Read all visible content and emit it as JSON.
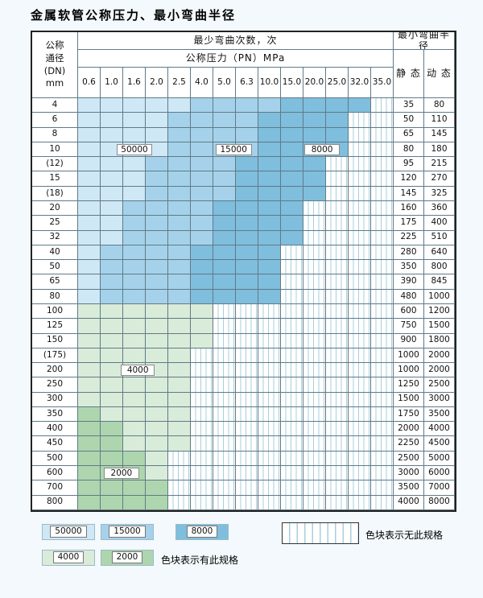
{
  "page": {
    "title": "金属软管公称压力、最小弯曲半径"
  },
  "table": {
    "header": {
      "dn_lines": [
        "公称",
        "通径",
        "(DN)",
        "mm"
      ],
      "bend_times": "最少弯曲次数，次",
      "pressure": "公称压力（PN）MPa",
      "radius": "最小弯曲半径",
      "static": "静 态",
      "dynamic": "动 态",
      "pressures": [
        "0.6",
        "1.0",
        "1.6",
        "2.0",
        "2.5",
        "4.0",
        "5.0",
        "6.3",
        "10.0",
        "15.0",
        "20.0",
        "25.0",
        "32.0",
        "35.0"
      ]
    },
    "colors": {
      "A": "#cfe8f6",
      "B": "#a5d2ea",
      "C": "#7fbedd",
      "D": "#d9ecd9",
      "E": "#aed6ae"
    },
    "rows": [
      {
        "dn": "4",
        "static": "35",
        "dynamic": "80",
        "cells": "AAAAABBBBCCCCS"
      },
      {
        "dn": "6",
        "static": "50",
        "dynamic": "110",
        "cells": "AAAABBBBCCCCSS"
      },
      {
        "dn": "8",
        "static": "65",
        "dynamic": "145",
        "cells": "AAAABBBBCCCCSS"
      },
      {
        "dn": "10",
        "static": "80",
        "dynamic": "180",
        "cells": "AAAABBBBCCCCSS"
      },
      {
        "dn": "(12)",
        "static": "95",
        "dynamic": "215",
        "cells": "AAABBBBCCCCSSS"
      },
      {
        "dn": "15",
        "static": "120",
        "dynamic": "270",
        "cells": "AAABBBBCCCCSSS"
      },
      {
        "dn": "(18)",
        "static": "145",
        "dynamic": "325",
        "cells": "AAABBBBCCCCSSS"
      },
      {
        "dn": "20",
        "static": "160",
        "dynamic": "360",
        "cells": "AABBBBCCCCSSSS"
      },
      {
        "dn": "25",
        "static": "175",
        "dynamic": "400",
        "cells": "AABBBBCCCCSSSS"
      },
      {
        "dn": "32",
        "static": "225",
        "dynamic": "510",
        "cells": "AABBBBCCCCSSSS"
      },
      {
        "dn": "40",
        "static": "280",
        "dynamic": "640",
        "cells": "ABBBBCCCCSSSSS"
      },
      {
        "dn": "50",
        "static": "350",
        "dynamic": "800",
        "cells": "ABBBBCCCCSSSSS"
      },
      {
        "dn": "65",
        "static": "390",
        "dynamic": "845",
        "cells": "ABBBBCCCCSSSSS"
      },
      {
        "dn": "80",
        "static": "480",
        "dynamic": "1000",
        "cells": "ABBBBCCCCSSSSS"
      },
      {
        "dn": "100",
        "static": "600",
        "dynamic": "1200",
        "cells": "DDDDDDSSSSSSSS"
      },
      {
        "dn": "125",
        "static": "750",
        "dynamic": "1500",
        "cells": "DDDDDDSSSSSSSS"
      },
      {
        "dn": "150",
        "static": "900",
        "dynamic": "1800",
        "cells": "DDDDDDSSSSSSSS"
      },
      {
        "dn": "(175)",
        "static": "1000",
        "dynamic": "2000",
        "cells": "DDDDDSSSSSSSSS"
      },
      {
        "dn": "200",
        "static": "1000",
        "dynamic": "2000",
        "cells": "DDDDDSSSSSSSSS"
      },
      {
        "dn": "250",
        "static": "1250",
        "dynamic": "2500",
        "cells": "DDDDDSSSSSSSSS"
      },
      {
        "dn": "300",
        "static": "1500",
        "dynamic": "3000",
        "cells": "DDDDDSSSSSSSSS"
      },
      {
        "dn": "350",
        "static": "1750",
        "dynamic": "3500",
        "cells": "EDDDDSSSSSSSSS"
      },
      {
        "dn": "400",
        "static": "2000",
        "dynamic": "4000",
        "cells": "EEDDDSSSSSSSSS"
      },
      {
        "dn": "450",
        "static": "2250",
        "dynamic": "4500",
        "cells": "EEDDDSSSSSSSSS"
      },
      {
        "dn": "500",
        "static": "2500",
        "dynamic": "5000",
        "cells": "EEEDSSSSSSSSSS"
      },
      {
        "dn": "600",
        "static": "3000",
        "dynamic": "6000",
        "cells": "EEEDSSSSSSSSSS"
      },
      {
        "dn": "700",
        "static": "3500",
        "dynamic": "7000",
        "cells": "EEEESSSSSSSSSS"
      },
      {
        "dn": "800",
        "static": "4000",
        "dynamic": "8000",
        "cells": "EEEESSSSSSSSSS"
      }
    ],
    "overlay_labels": [
      {
        "text": "50000",
        "row": 3,
        "col": 1.7,
        "span": 1.6
      },
      {
        "text": "15000",
        "row": 3,
        "col": 6.1,
        "span": 1.6
      },
      {
        "text": "8000",
        "row": 3,
        "col": 10.05,
        "span": 1.55
      },
      {
        "text": "4000",
        "row": 18,
        "col": 1.9,
        "span": 1.5
      },
      {
        "text": "2000",
        "row": 25,
        "col": 1.15,
        "span": 1.55
      }
    ]
  },
  "legend": {
    "row1": [
      {
        "label": "50000",
        "color": "A"
      },
      {
        "label": "15000",
        "color": "B"
      },
      {
        "label": "8000",
        "color": "C"
      }
    ],
    "row2": [
      {
        "label": "4000",
        "color": "D"
      },
      {
        "label": "2000",
        "color": "E"
      }
    ],
    "has_spec": "色块表示有此规格",
    "no_spec": "色块表示无此规格"
  }
}
